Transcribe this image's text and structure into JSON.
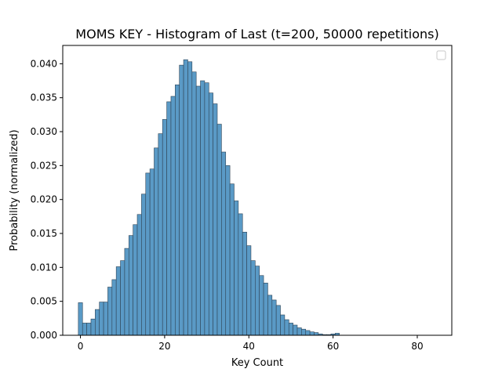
{
  "chart_data": {
    "type": "bar",
    "title": "MOMS KEY - Histogram of Last (t=200, 50000 repetitions)",
    "xlabel": "Key Count",
    "ylabel": "Probability (normalized)",
    "xlim": [
      -4.2,
      88.2
    ],
    "ylim": [
      0,
      0.0427
    ],
    "xticks": [
      0,
      20,
      40,
      60,
      80
    ],
    "xtick_labels": [
      "0",
      "20",
      "40",
      "60",
      "80"
    ],
    "yticks": [
      0.0,
      0.005,
      0.01,
      0.015,
      0.02,
      0.025,
      0.03,
      0.035,
      0.04
    ],
    "ytick_labels": [
      "0.000",
      "0.005",
      "0.010",
      "0.015",
      "0.020",
      "0.025",
      "0.030",
      "0.035",
      "0.040"
    ],
    "bin_width": 1,
    "bins_start": [
      -0.5,
      0.5,
      1.5,
      2.5,
      3.5,
      4.5,
      5.5,
      6.5,
      7.5,
      8.5,
      9.5,
      10.5,
      11.5,
      12.5,
      13.5,
      14.5,
      15.5,
      16.5,
      17.5,
      18.5,
      19.5,
      20.5,
      21.5,
      22.5,
      23.5,
      24.5,
      25.5,
      26.5,
      27.5,
      28.5,
      29.5,
      30.5,
      31.5,
      32.5,
      33.5,
      34.5,
      35.5,
      36.5,
      37.5,
      38.5,
      39.5,
      40.5,
      41.5,
      42.5,
      43.5,
      44.5,
      45.5,
      46.5,
      47.5,
      48.5,
      49.5,
      50.5,
      51.5,
      52.5,
      53.5,
      54.5,
      55.5,
      56.5,
      57.5,
      58.5,
      59.5,
      60.5
    ],
    "values": [
      0.0048,
      0.0018,
      0.0018,
      0.0024,
      0.0038,
      0.0049,
      0.0049,
      0.0071,
      0.0082,
      0.0101,
      0.011,
      0.0128,
      0.0147,
      0.0163,
      0.0178,
      0.0208,
      0.0239,
      0.0245,
      0.0276,
      0.0297,
      0.0318,
      0.0344,
      0.0352,
      0.0369,
      0.0398,
      0.0406,
      0.0403,
      0.0388,
      0.0367,
      0.0375,
      0.0372,
      0.0357,
      0.0341,
      0.0311,
      0.027,
      0.025,
      0.0223,
      0.0198,
      0.0179,
      0.0152,
      0.0132,
      0.011,
      0.0102,
      0.0088,
      0.0077,
      0.0059,
      0.0052,
      0.0044,
      0.003,
      0.0023,
      0.0018,
      0.0015,
      0.0011,
      0.0009,
      0.0007,
      0.0005,
      0.0004,
      0.0002,
      0.0001,
      0.0001,
      0.0002,
      0.0003
    ],
    "bar_color": "#5a9ac6",
    "edge_color": "#2f4456",
    "grid": false,
    "legend": "top-right",
    "legend_entries": []
  }
}
